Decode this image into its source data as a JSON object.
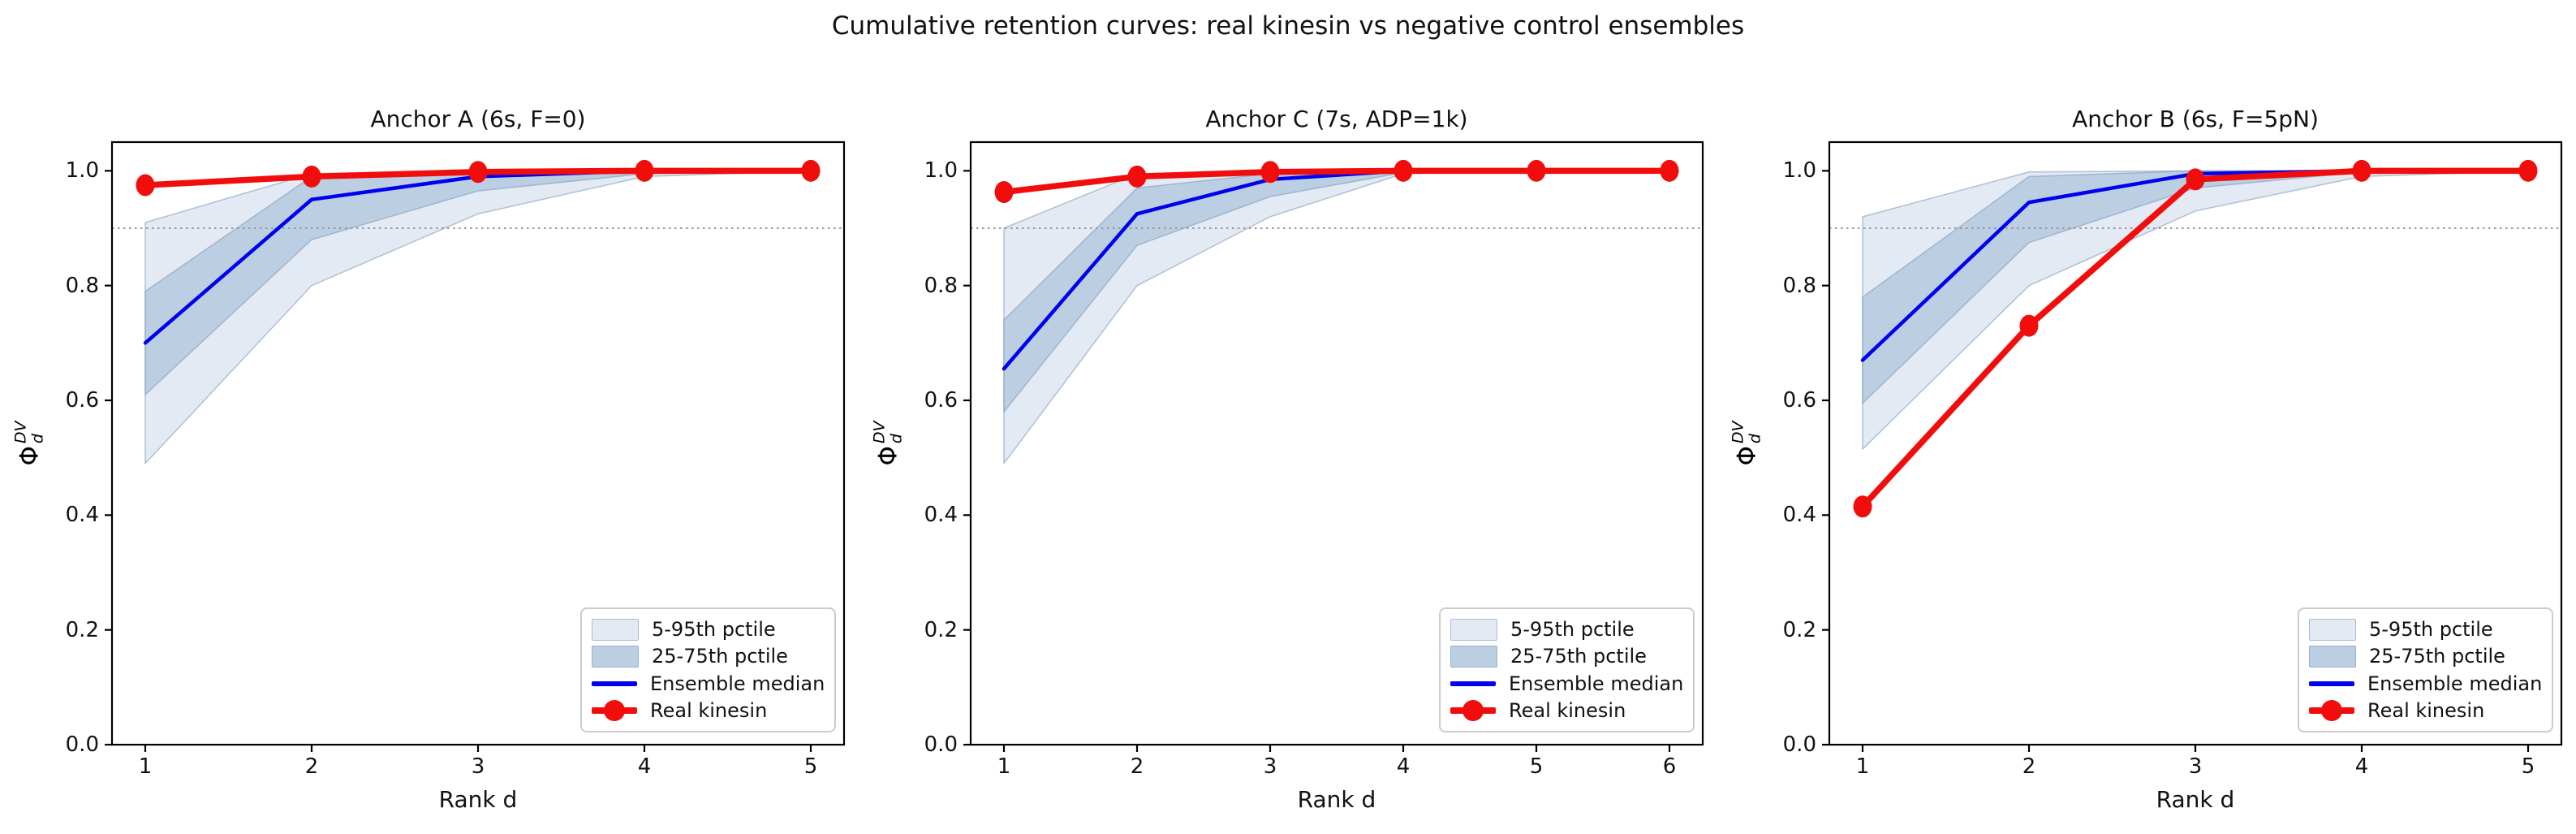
{
  "figure": {
    "suptitle": "Cumulative retention curves: real kinesin vs negative control ensembles",
    "background": "#ffffff"
  },
  "axes": {
    "xlabel": "Rank d",
    "ylabel_symbol": "Φ",
    "ylabel_sup": "DV",
    "ylabel_sub": "d",
    "ytick_labels": [
      "0.0",
      "0.2",
      "0.4",
      "0.6",
      "0.8",
      "1.0"
    ],
    "ytick_values": [
      0.0,
      0.2,
      0.4,
      0.6,
      0.8,
      1.0
    ],
    "ylim": [
      0.0,
      1.05
    ],
    "threshold_value": 0.9
  },
  "colors": {
    "real": "#f20d0d",
    "median": "#0000ee",
    "band_light_fill": "#e3eaf3",
    "band_dark_fill": "#bccfe2",
    "band_edge": "rgba(120,150,185,0.55)",
    "threshold": "#999999",
    "spine": "#000000",
    "legend_border": "#cccccc",
    "text": "#111111"
  },
  "legend": {
    "items": [
      {
        "label": "5-95th pctile",
        "swatch": "band-light"
      },
      {
        "label": "25-75th pctile",
        "swatch": "band-dark"
      },
      {
        "label": "Ensemble median",
        "swatch": "line"
      },
      {
        "label": "Real kinesin",
        "swatch": "line-marker"
      }
    ]
  },
  "chart_data": [
    {
      "type": "line",
      "title": "Anchor A (6s, F=0)",
      "xlabel": "Rank d",
      "ylabel": "Phi_d_DV",
      "x": [
        1,
        2,
        3,
        4,
        5
      ],
      "xtick_labels": [
        "1",
        "2",
        "3",
        "4",
        "5"
      ],
      "ylim": [
        0.0,
        1.05
      ],
      "threshold": 0.9,
      "grid": false,
      "legend_position": "lower right",
      "series": [
        {
          "name": "5-95th pctile",
          "type": "band",
          "low": [
            0.49,
            0.8,
            0.925,
            0.99,
            1.0
          ],
          "high": [
            0.91,
            0.995,
            1.0,
            1.0,
            1.0
          ]
        },
        {
          "name": "25-75th pctile",
          "type": "band",
          "low": [
            0.61,
            0.88,
            0.965,
            0.995,
            1.0
          ],
          "high": [
            0.79,
            0.99,
            0.997,
            1.0,
            1.0
          ]
        },
        {
          "name": "Ensemble median",
          "type": "line",
          "values": [
            0.7,
            0.95,
            0.99,
            1.0,
            1.0
          ]
        },
        {
          "name": "Real kinesin",
          "type": "line_marker",
          "values": [
            0.975,
            0.99,
            0.998,
            1.0,
            1.0
          ]
        }
      ]
    },
    {
      "type": "line",
      "title": "Anchor C (7s, ADP=1k)",
      "xlabel": "Rank d",
      "ylabel": "Phi_d_DV",
      "x": [
        1,
        2,
        3,
        4,
        5,
        6
      ],
      "xtick_labels": [
        "1",
        "2",
        "3",
        "4",
        "5",
        "6"
      ],
      "ylim": [
        0.0,
        1.05
      ],
      "threshold": 0.9,
      "grid": false,
      "legend_position": "lower right",
      "series": [
        {
          "name": "5-95th pctile",
          "type": "band",
          "low": [
            0.49,
            0.8,
            0.92,
            0.995,
            1.0,
            1.0
          ],
          "high": [
            0.9,
            0.995,
            1.0,
            1.0,
            1.0,
            1.0
          ]
        },
        {
          "name": "25-75th pctile",
          "type": "band",
          "low": [
            0.58,
            0.87,
            0.955,
            0.997,
            1.0,
            1.0
          ],
          "high": [
            0.74,
            0.97,
            0.995,
            1.0,
            1.0,
            1.0
          ]
        },
        {
          "name": "Ensemble median",
          "type": "line",
          "values": [
            0.655,
            0.925,
            0.985,
            1.0,
            1.0,
            1.0
          ]
        },
        {
          "name": "Real kinesin",
          "type": "line_marker",
          "values": [
            0.963,
            0.99,
            0.998,
            1.0,
            1.0,
            1.0
          ]
        }
      ]
    },
    {
      "type": "line",
      "title": "Anchor B (6s, F=5pN)",
      "xlabel": "Rank d",
      "ylabel": "Phi_d_DV",
      "x": [
        1,
        2,
        3,
        4,
        5
      ],
      "xtick_labels": [
        "1",
        "2",
        "3",
        "4",
        "5"
      ],
      "ylim": [
        0.0,
        1.05
      ],
      "threshold": 0.9,
      "grid": false,
      "legend_position": "lower right",
      "series": [
        {
          "name": "5-95th pctile",
          "type": "band",
          "low": [
            0.515,
            0.8,
            0.93,
            0.99,
            1.0
          ],
          "high": [
            0.92,
            0.998,
            1.0,
            1.0,
            1.0
          ]
        },
        {
          "name": "25-75th pctile",
          "type": "band",
          "low": [
            0.595,
            0.875,
            0.97,
            0.998,
            1.0
          ],
          "high": [
            0.78,
            0.99,
            1.0,
            1.0,
            1.0
          ]
        },
        {
          "name": "Ensemble median",
          "type": "line",
          "values": [
            0.67,
            0.945,
            0.995,
            1.0,
            1.0
          ]
        },
        {
          "name": "Real kinesin",
          "type": "line_marker",
          "values": [
            0.415,
            0.73,
            0.985,
            1.0,
            1.0
          ]
        }
      ]
    }
  ]
}
